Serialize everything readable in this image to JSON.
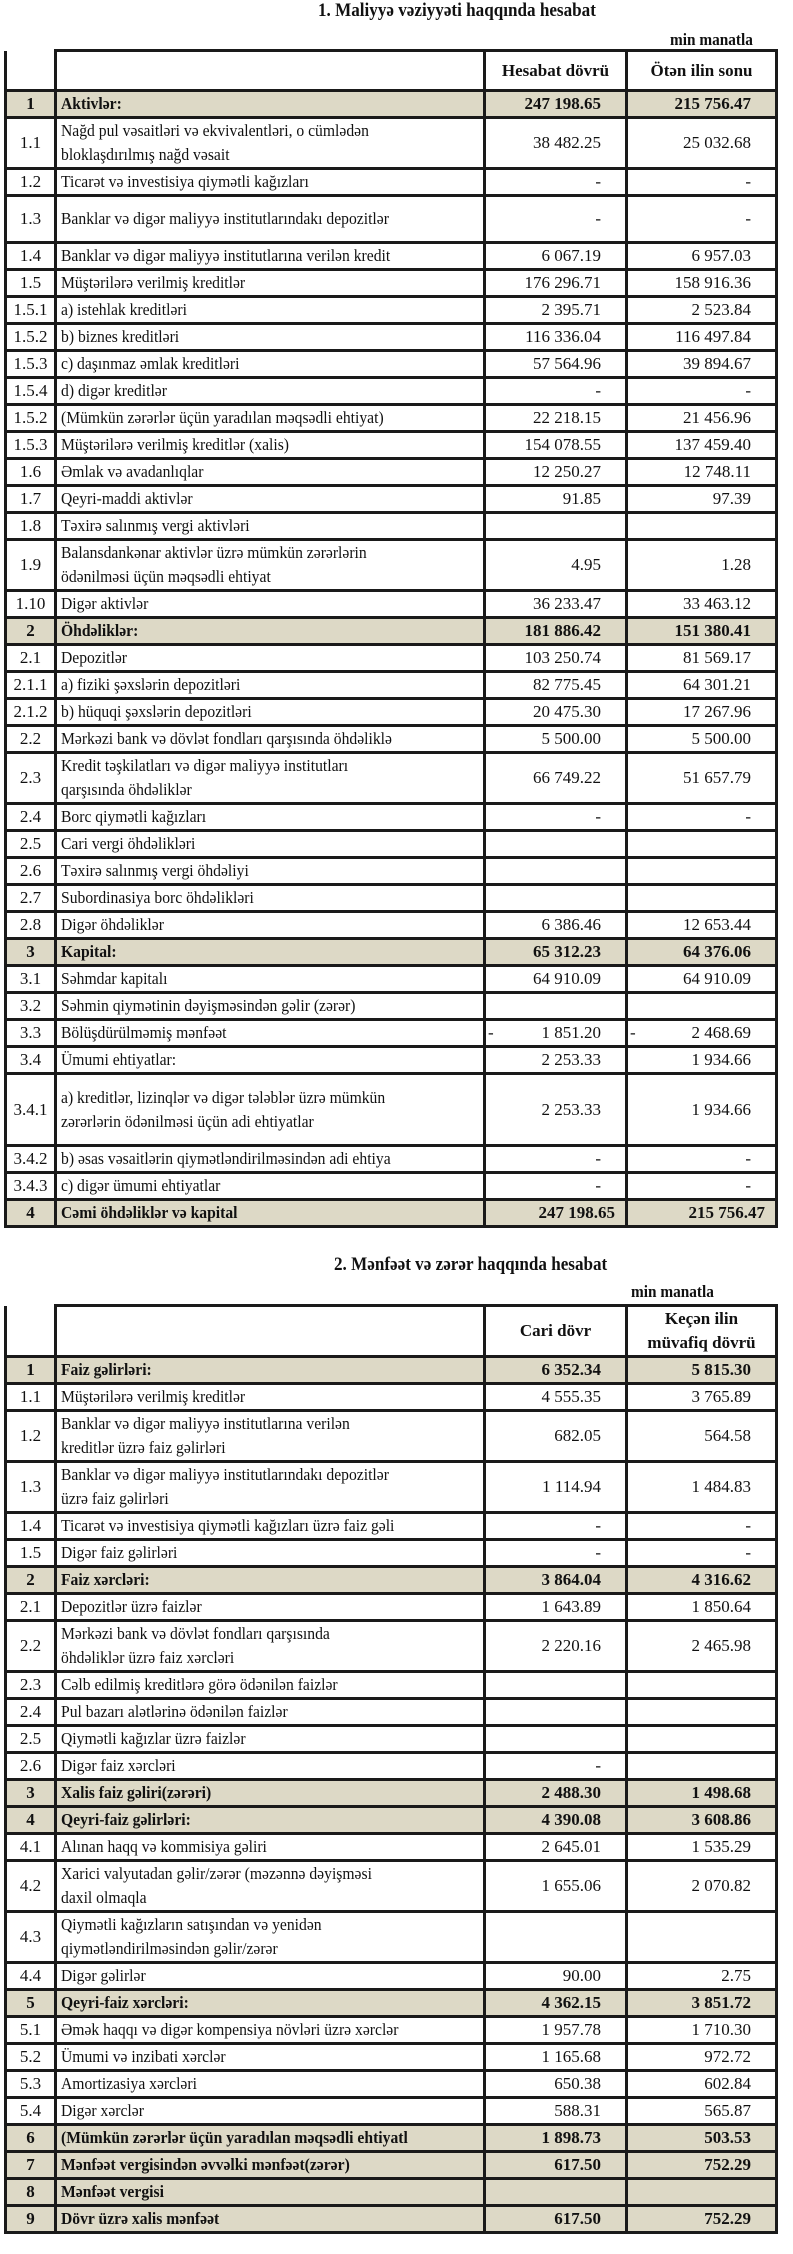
{
  "report1": {
    "title": "1.      Maliyyə vəziyyəti haqqında hesabat",
    "unit": "min manatla",
    "headers": [
      "Hesabat dövrü",
      "Ötən ilin sonu"
    ],
    "rows": [
      {
        "n": "1",
        "label": "Aktivlər:",
        "v1": "247 198.65",
        "v2": "215 756.47",
        "total": true
      },
      {
        "n": "1.1",
        "label": "Nağd pul vəsaitləri və  ekvivalentləri, o cümlədən\nbloklaşdırılmış nağd vəsait",
        "v1": "38 482.25",
        "v2": "25 032.68"
      },
      {
        "n": "1.2",
        "label": "Ticarət və investisiya qiymətli kağızları",
        "v1": "-",
        "v2": "-"
      },
      {
        "n": "1.3",
        "label": "Banklar və digər maliyyə institutlarındakı depozitlər",
        "v1": "-",
        "v2": "-"
      },
      {
        "n": "1.4",
        "label": "Banklar və digər maliyyə institutlarına verilən kredit",
        "v1": "6 067.19",
        "v2": "6 957.03"
      },
      {
        "n": "1.5",
        "label": "Müştərilərə verilmiş kreditlər",
        "v1": "176 296.71",
        "v2": "158 916.36"
      },
      {
        "n": "1.5.1",
        "label": "a) istehlak kreditləri",
        "v1": "2 395.71",
        "v2": "2 523.84"
      },
      {
        "n": "1.5.2",
        "label": "b) biznes kreditləri",
        "v1": "116 336.04",
        "v2": "116 497.84"
      },
      {
        "n": "1.5.3",
        "label": "c) daşınmaz əmlak kreditləri",
        "v1": "57 564.96",
        "v2": "39 894.67"
      },
      {
        "n": "1.5.4",
        "label": "d) digər kreditlər",
        "v1": "-",
        "v2": "-"
      },
      {
        "n": "1.5.2",
        "label": "(Mümkün zərərlər üçün yaradılan məqsədli ehtiyat)",
        "v1": "22 218.15",
        "v2": "21 456.96"
      },
      {
        "n": "1.5.3",
        "label": "Müştərilərə verilmiş kreditlər (xalis)",
        "v1": "154 078.55",
        "v2": "137 459.40"
      },
      {
        "n": "1.6",
        "label": "Əmlak və avadanlıqlar",
        "v1": "12 250.27",
        "v2": "12 748.11"
      },
      {
        "n": "1.7",
        "label": "Qeyri-maddi aktivlər",
        "v1": "91.85",
        "v2": "97.39"
      },
      {
        "n": "1.8",
        "label": "Təxirə salınmış vergi aktivləri",
        "v1": "",
        "v2": ""
      },
      {
        "n": "1.9",
        "label": "Balansdankənar aktivlər üzrə mümkün zərərlərin\nödənilməsi üçün məqsədli ehtiyat",
        "v1": "4.95",
        "v2": "1.28"
      },
      {
        "n": "1.10",
        "label": "Digər aktivlər",
        "v1": "36 233.47",
        "v2": "33 463.12"
      },
      {
        "n": "2",
        "label": "Öhdəliklər:",
        "v1": "181 886.42",
        "v2": "151 380.41",
        "total": true
      },
      {
        "n": "2.1",
        "label": "Depozitlər",
        "v1": "103 250.74",
        "v2": "81 569.17"
      },
      {
        "n": "2.1.1",
        "label": "a) fiziki şəxslərin depozitləri",
        "v1": "82 775.45",
        "v2": "64 301.21"
      },
      {
        "n": "2.1.2",
        "label": "b) hüquqi şəxslərin depozitləri",
        "v1": "20 475.30",
        "v2": "17 267.96"
      },
      {
        "n": "2.2",
        "label": "Mərkəzi bank və dövlət fondları qarşısında öhdəliklə",
        "v1": "5 500.00",
        "v2": "5 500.00"
      },
      {
        "n": "2.3",
        "label": "Kredit təşkilatları və digər maliyyə institutları\nqarşısında öhdəliklər",
        "v1": "66 749.22",
        "v2": "51 657.79"
      },
      {
        "n": "2.4",
        "label": "Borc qiymətli kağızları",
        "v1": "-",
        "v2": "-"
      },
      {
        "n": "2.5",
        "label": "Cari vergi öhdəlikləri",
        "v1": "",
        "v2": ""
      },
      {
        "n": "2.6",
        "label": "Təxirə salınmış vergi öhdəliyi",
        "v1": "",
        "v2": ""
      },
      {
        "n": "2.7",
        "label": "Subordinasiya borc öhdəlikləri",
        "v1": "",
        "v2": ""
      },
      {
        "n": "2.8",
        "label": "Digər öhdəliklər",
        "v1": "6 386.46",
        "v2": "12 653.44"
      },
      {
        "n": "3",
        "label": "Kapital:",
        "v1": "65 312.23",
        "v2": "64 376.06",
        "total": true
      },
      {
        "n": "3.1",
        "label": "Səhmdar kapitalı",
        "v1": "64 910.09",
        "v2": "64 910.09"
      },
      {
        "n": "3.2",
        "label": "Səhmin qiymətinin dəyişməsindən gəlir (zərər)",
        "v1": "",
        "v2": ""
      },
      {
        "n": "3.3",
        "label": "Bölüşdürülməmiş mənfəət",
        "v1": "- 1 851.20",
        "v2": "- 2 468.69"
      },
      {
        "n": "3.4",
        "label": "Ümumi ehtiyatlar:",
        "v1": "2 253.33",
        "v2": "1 934.66"
      },
      {
        "n": "3.4.1",
        "label": "a) kreditlər, lizinqlər və digər tələblər üzrə mümkün\nzərərlərin ödənilməsi üçün adi ehtiyatlar",
        "v1": "2 253.33",
        "v2": "1 934.66"
      },
      {
        "n": "3.4.2",
        "label": "b) əsas vəsaitlərin qiymətləndirilməsindən adi ehtiya",
        "v1": "-",
        "v2": "-"
      },
      {
        "n": "3.4.3",
        "label": "c) digər ümumi ehtiyatlar",
        "v1": "-",
        "v2": "-"
      },
      {
        "n": "4",
        "label": "Cəmi öhdəliklər və kapital",
        "v1": "247 198.65",
        "v2": "215 756.47",
        "total": true,
        "grand": true
      }
    ]
  },
  "report2": {
    "title": "2. Mənfəət və zərər haqqında hesabat",
    "unit": "min manatla",
    "headers": [
      "Cari dövr",
      "Keçən ilin\nmüvafiq dövrü"
    ],
    "rows": [
      {
        "n": "1",
        "label": "Faiz gəlirləri:",
        "v1": "6 352.34",
        "v2": "5 815.30",
        "total": true
      },
      {
        "n": "1.1",
        "label": "Müştərilərə verilmiş kreditlər",
        "v1": "4 555.35",
        "v2": "3 765.89"
      },
      {
        "n": "1.2",
        "label": "Banklar və digər maliyyə institutlarına verilən\nkreditlər üzrə faiz gəlirləri",
        "v1": "682.05",
        "v2": "564.58"
      },
      {
        "n": "1.3",
        "label": "Banklar və digər maliyyə institutlarındakı depozitlər\nüzrə faiz gəlirləri",
        "v1": "1 114.94",
        "v2": "1 484.83"
      },
      {
        "n": "1.4",
        "label": "Ticarət və investisiya qiymətli kağızları üzrə faiz gəli",
        "v1": "-",
        "v2": "-"
      },
      {
        "n": "1.5",
        "label": "Digər faiz gəlirləri",
        "v1": "-",
        "v2": "-"
      },
      {
        "n": "2",
        "label": "Faiz xərcləri:",
        "v1": "3 864.04",
        "v2": "4 316.62",
        "total": true
      },
      {
        "n": "2.1",
        "label": "Depozitlər üzrə faizlər",
        "v1": "1 643.89",
        "v2": "1 850.64"
      },
      {
        "n": "2.2",
        "label": "Mərkəzi bank və dövlət fondları qarşısında\nöhdəliklər üzrə faiz xərcləri",
        "v1": "2 220.16",
        "v2": "2 465.98"
      },
      {
        "n": "2.3",
        "label": "Cəlb edilmiş kreditlərə görə ödənilən faizlər",
        "v1": "",
        "v2": ""
      },
      {
        "n": "2.4",
        "label": "Pul bazarı alətlərinə ödənilən faizlər",
        "v1": "",
        "v2": ""
      },
      {
        "n": "2.5",
        "label": "Qiymətli kağızlar üzrə faizlər",
        "v1": "",
        "v2": ""
      },
      {
        "n": "2.6",
        "label": "Digər faiz xərcləri",
        "v1": "-",
        "v2": ""
      },
      {
        "n": "3",
        "label": "Xalis faiz gəliri(zərəri)",
        "v1": "2 488.30",
        "v2": "1 498.68",
        "total": true
      },
      {
        "n": "4",
        "label": "Qeyri-faiz gəlirləri:",
        "v1": "4 390.08",
        "v2": "3 608.86",
        "total": true
      },
      {
        "n": "4.1",
        "label": "Alınan haqq və kommisiya gəliri",
        "v1": "2 645.01",
        "v2": "1 535.29"
      },
      {
        "n": "4.2",
        "label": "Xarici valyutadan gəlir/zərər (məzənnə dəyişməsi\ndaxil olmaqla",
        "v1": "1 655.06",
        "v2": "2 070.82"
      },
      {
        "n": "4.3",
        "label": "Qiymətli kağızların satışından və yenidən\nqiymətləndirilməsindən gəlir/zərər",
        "v1": "",
        "v2": ""
      },
      {
        "n": "4.4",
        "label": "Digər gəlirlər",
        "v1": "90.00",
        "v2": "2.75"
      },
      {
        "n": "5",
        "label": "Qeyri-faiz xərcləri:",
        "v1": "4 362.15",
        "v2": "3 851.72",
        "total": true
      },
      {
        "n": "5.1",
        "label": "Əmək haqqı və digər kompensiya növləri üzrə xərclər",
        "v1": "1 957.78",
        "v2": "1 710.30"
      },
      {
        "n": "5.2",
        "label": "Ümumi və inzibati xərclər",
        "v1": "1 165.68",
        "v2": "972.72"
      },
      {
        "n": "5.3",
        "label": "Amortizasiya xərcləri",
        "v1": "650.38",
        "v2": "602.84"
      },
      {
        "n": "5.4",
        "label": "Digər xərclər",
        "v1": "588.31",
        "v2": "565.87"
      },
      {
        "n": "6",
        "label": "(Mümkün zərərlər üçün yaradılan məqsədli ehtiyatl",
        "v1": "1 898.73",
        "v2": "503.53",
        "total": true
      },
      {
        "n": "7",
        "label": "Mənfəət vergisindən əvvəlki mənfəət(zərər)",
        "v1": "617.50",
        "v2": "752.29",
        "total": true
      },
      {
        "n": "8",
        "label": "Mənfəət vergisi",
        "v1": "",
        "v2": "",
        "total": true
      },
      {
        "n": "9",
        "label": "Dövr üzrə xalis mənfəət",
        "v1": "617.50",
        "v2": "752.29",
        "total": true
      }
    ]
  }
}
